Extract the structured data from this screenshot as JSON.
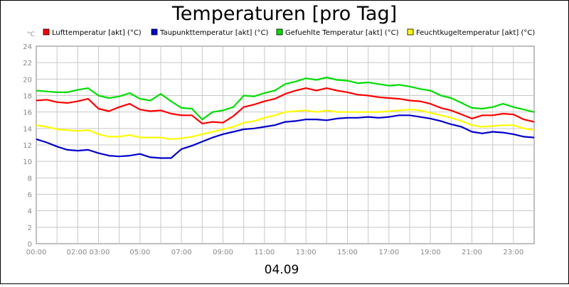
{
  "chart_data": {
    "type": "line",
    "title": "Temperaturen [pro Tag]",
    "unit_label": "°C",
    "date_label": "04.09",
    "ylim": [
      0,
      24
    ],
    "yticks": [
      0,
      2,
      4,
      6,
      8,
      10,
      12,
      14,
      16,
      18,
      20,
      22,
      24
    ],
    "xlim": [
      0,
      24
    ],
    "xtick_labels": [
      "00:00",
      "02:00 03:00",
      "05:00",
      "07:00",
      "09:00",
      "11:00",
      "13:00",
      "15:00",
      "17:00",
      "19:00",
      "21:00",
      "23:00"
    ],
    "xtick_hours": [
      0,
      2.5,
      5,
      7,
      9,
      11,
      13,
      15,
      17,
      19,
      21,
      23
    ],
    "grid": true,
    "legend_position": "top",
    "series": [
      {
        "name": "Lufttemperatur [akt] (°C)",
        "color": "#ff0000",
        "x": [
          0,
          0.5,
          1,
          1.5,
          2,
          2.5,
          3,
          3.5,
          4,
          4.5,
          5,
          5.5,
          6,
          6.5,
          7,
          7.5,
          8,
          8.5,
          9,
          9.5,
          10,
          10.5,
          11,
          11.5,
          12,
          12.5,
          13,
          13.5,
          14,
          14.5,
          15,
          15.5,
          16,
          16.5,
          17,
          17.5,
          18,
          18.5,
          19,
          19.5,
          20,
          20.5,
          21,
          21.5,
          22,
          22.5,
          23,
          23.5,
          24
        ],
        "values": [
          17.4,
          17.5,
          17.2,
          17.1,
          17.3,
          17.6,
          16.4,
          16.1,
          16.6,
          17.0,
          16.3,
          16.1,
          16.2,
          15.8,
          15.6,
          15.6,
          14.6,
          14.8,
          14.7,
          15.5,
          16.6,
          16.9,
          17.3,
          17.6,
          18.2,
          18.6,
          18.9,
          18.6,
          18.9,
          18.6,
          18.4,
          18.1,
          18.0,
          17.8,
          17.7,
          17.6,
          17.4,
          17.3,
          17.0,
          16.5,
          16.2,
          15.7,
          15.2,
          15.6,
          15.6,
          15.8,
          15.7,
          15.1,
          14.8
        ]
      },
      {
        "name": "Taupunkttemperatur [akt] (°C)",
        "color": "#0000cc",
        "x": [
          0,
          0.5,
          1,
          1.5,
          2,
          2.5,
          3,
          3.5,
          4,
          4.5,
          5,
          5.5,
          6,
          6.5,
          7,
          7.5,
          8,
          8.5,
          9,
          9.5,
          10,
          10.5,
          11,
          11.5,
          12,
          12.5,
          13,
          13.5,
          14,
          14.5,
          15,
          15.5,
          16,
          16.5,
          17,
          17.5,
          18,
          18.5,
          19,
          19.5,
          20,
          20.5,
          21,
          21.5,
          22,
          22.5,
          23,
          23.5,
          24
        ],
        "values": [
          12.7,
          12.3,
          11.8,
          11.4,
          11.3,
          11.4,
          11.0,
          10.7,
          10.6,
          10.7,
          10.9,
          10.5,
          10.4,
          10.4,
          11.5,
          11.9,
          12.4,
          12.9,
          13.3,
          13.6,
          13.9,
          14.0,
          14.2,
          14.4,
          14.8,
          14.9,
          15.1,
          15.1,
          15.0,
          15.2,
          15.3,
          15.3,
          15.4,
          15.3,
          15.4,
          15.6,
          15.6,
          15.4,
          15.2,
          14.9,
          14.5,
          14.2,
          13.6,
          13.4,
          13.6,
          13.5,
          13.3,
          13.0,
          12.9
        ]
      },
      {
        "name": "Gefuehlte Temperatur [akt] (°C)",
        "color": "#00dd00",
        "x": [
          0,
          0.5,
          1,
          1.5,
          2,
          2.5,
          3,
          3.5,
          4,
          4.5,
          5,
          5.5,
          6,
          6.5,
          7,
          7.5,
          8,
          8.5,
          9,
          9.5,
          10,
          10.5,
          11,
          11.5,
          12,
          12.5,
          13,
          13.5,
          14,
          14.5,
          15,
          15.5,
          16,
          16.5,
          17,
          17.5,
          18,
          18.5,
          19,
          19.5,
          20,
          20.5,
          21,
          21.5,
          22,
          22.5,
          23,
          23.5,
          24
        ],
        "values": [
          18.6,
          18.5,
          18.4,
          18.4,
          18.7,
          18.9,
          18.0,
          17.7,
          17.9,
          18.3,
          17.6,
          17.4,
          18.2,
          17.3,
          16.5,
          16.4,
          15.1,
          16.0,
          16.2,
          16.6,
          18.0,
          17.9,
          18.3,
          18.6,
          19.4,
          19.7,
          20.1,
          19.9,
          20.2,
          19.9,
          19.8,
          19.5,
          19.6,
          19.4,
          19.2,
          19.3,
          19.1,
          18.8,
          18.6,
          18.0,
          17.7,
          17.1,
          16.5,
          16.4,
          16.6,
          17.0,
          16.6,
          16.3,
          16.0
        ]
      },
      {
        "name": "Feuchtkugeltemperatur [akt] (°C)",
        "color": "#ffff00",
        "x": [
          0,
          0.5,
          1,
          1.5,
          2,
          2.5,
          3,
          3.5,
          4,
          4.5,
          5,
          5.5,
          6,
          6.5,
          7,
          7.5,
          8,
          8.5,
          9,
          9.5,
          10,
          10.5,
          11,
          11.5,
          12,
          12.5,
          13,
          13.5,
          14,
          14.5,
          15,
          15.5,
          16,
          16.5,
          17,
          17.5,
          18,
          18.5,
          19,
          19.5,
          20,
          20.5,
          21,
          21.5,
          22,
          22.5,
          23,
          23.5,
          24
        ],
        "values": [
          14.4,
          14.2,
          13.9,
          13.8,
          13.7,
          13.8,
          13.3,
          13.0,
          13.0,
          13.2,
          12.9,
          12.9,
          12.9,
          12.7,
          12.8,
          13.0,
          13.3,
          13.6,
          13.9,
          14.2,
          14.7,
          14.9,
          15.3,
          15.6,
          16.0,
          16.1,
          16.2,
          16.0,
          16.2,
          16.0,
          16.0,
          16.0,
          16.0,
          16.0,
          16.1,
          16.2,
          16.3,
          16.2,
          15.9,
          15.6,
          15.3,
          14.9,
          14.4,
          14.2,
          14.3,
          14.4,
          14.4,
          14.0,
          13.8
        ]
      }
    ]
  }
}
